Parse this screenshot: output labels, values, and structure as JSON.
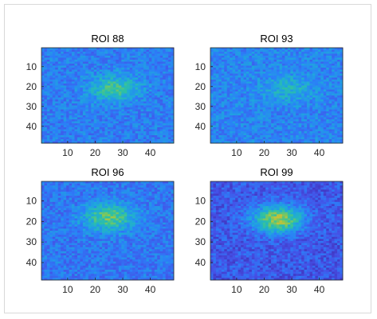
{
  "chart_data": [
    {
      "type": "heatmap",
      "title": "ROI 88",
      "xticks": [
        10,
        20,
        30,
        40
      ],
      "yticks": [
        10,
        20,
        30,
        40
      ],
      "xlim": [
        0.5,
        48.5
      ],
      "ylim": [
        0.5,
        48.5
      ],
      "columns": 48,
      "rows": 48,
      "y_reversed": true,
      "colormap": "parula",
      "hotspot_center": [
        27,
        21
      ],
      "background_level": 0.3,
      "peak_level": 0.62
    },
    {
      "type": "heatmap",
      "title": "ROI 93",
      "xticks": [
        10,
        20,
        30,
        40
      ],
      "yticks": [
        10,
        20,
        30,
        40
      ],
      "xlim": [
        0.5,
        48.5
      ],
      "ylim": [
        0.5,
        48.5
      ],
      "columns": 48,
      "rows": 48,
      "y_reversed": true,
      "colormap": "parula",
      "hotspot_center": [
        29,
        21
      ],
      "background_level": 0.32,
      "peak_level": 0.5
    },
    {
      "type": "heatmap",
      "title": "ROI 96",
      "xticks": [
        10,
        20,
        30,
        40
      ],
      "yticks": [
        10,
        20,
        30,
        40
      ],
      "xlim": [
        0.5,
        48.5
      ],
      "ylim": [
        0.5,
        48.5
      ],
      "columns": 48,
      "rows": 48,
      "y_reversed": true,
      "colormap": "parula",
      "hotspot_center": [
        25,
        18
      ],
      "background_level": 0.28,
      "peak_level": 0.68
    },
    {
      "type": "heatmap",
      "title": "ROI 99",
      "xticks": [
        10,
        20,
        30,
        40
      ],
      "yticks": [
        10,
        20,
        30,
        40
      ],
      "xlim": [
        0.5,
        48.5
      ],
      "ylim": [
        0.5,
        48.5
      ],
      "columns": 48,
      "rows": 48,
      "y_reversed": true,
      "colormap": "parula",
      "hotspot_center": [
        25,
        19
      ],
      "background_level": 0.18,
      "peak_level": 0.78
    }
  ]
}
